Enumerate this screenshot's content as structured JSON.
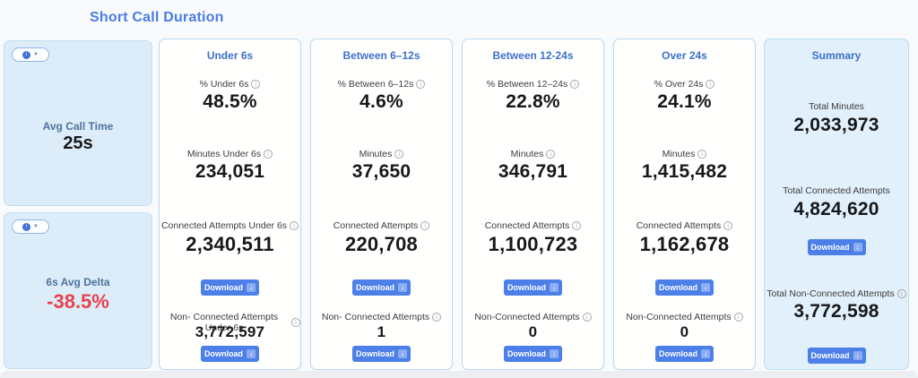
{
  "title": "Short Call Duration",
  "side_cards": [
    {
      "label": "Avg Call Time",
      "value": "25s"
    },
    {
      "label": "6s Avg Delta",
      "value": "-38.5%"
    }
  ],
  "metric_cards": [
    {
      "header": "Under 6s",
      "pct_label": "% Under 6s",
      "pct_value": "48.5%",
      "minutes_label": "Minutes Under 6s",
      "minutes_value": "234,051",
      "connected_label": "Connected Attempts Under 6s",
      "connected_value": "2,340,511",
      "non_connected_label": "Non- Connected Attempts Under 6s",
      "non_connected_value": "3,772,597"
    },
    {
      "header": "Between 6–12s",
      "pct_label": "% Between 6–12s",
      "pct_value": "4.6%",
      "minutes_label": "Minutes",
      "minutes_value": "37,650",
      "connected_label": "Connected Attempts",
      "connected_value": "220,708",
      "non_connected_label": "Non- Connected Attempts",
      "non_connected_value": "1"
    },
    {
      "header": "Between 12-24s",
      "pct_label": "% Between 12–24s",
      "pct_value": "22.8%",
      "minutes_label": "Minutes",
      "minutes_value": "346,791",
      "connected_label": "Connected Attempts",
      "connected_value": "1,100,723",
      "non_connected_label": "Non-Connected Attempts",
      "non_connected_value": "0"
    },
    {
      "header": "Over 24s",
      "pct_label": "% Over 24s",
      "pct_value": "24.1%",
      "minutes_label": "Minutes",
      "minutes_value": "1,415,482",
      "connected_label": "Connected Attempts",
      "connected_value": "1,162,678",
      "non_connected_label": "Non-Connected Attempts",
      "non_connected_value": "0"
    }
  ],
  "summary": {
    "header": "Summary",
    "total_minutes_label": "Total Minutes",
    "total_minutes_value": "2,033,973",
    "total_connected_label": "Total Connected Attempts",
    "total_connected_value": "4,824,620",
    "total_non_connected_label": "Total Non-Connected Attempts",
    "total_non_connected_value": "3,772,598"
  },
  "buttons": {
    "download": "Download"
  },
  "colors": {
    "title_blue": "#4a7de0",
    "card_header_blue": "#3e70c9",
    "side_label_blue": "#4e739c",
    "negative_red": "#e8414d",
    "button_blue": "#4c80e8",
    "card_border_blue": "#b8d9f2",
    "side_card_bg": "#dcedf9",
    "summary_card_bg": "#e1f0fb"
  }
}
